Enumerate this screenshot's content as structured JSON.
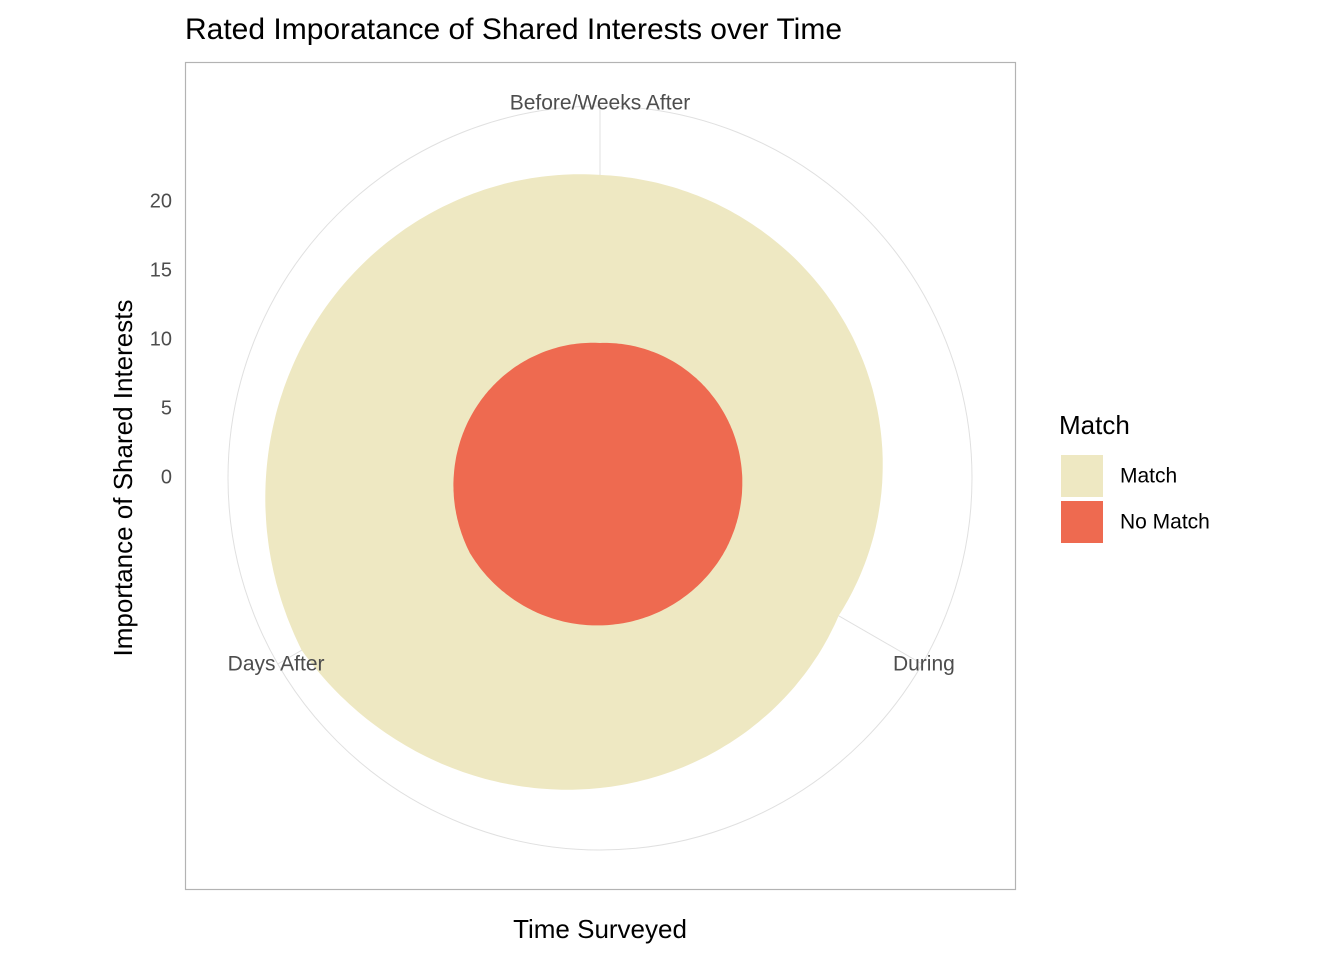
{
  "chart_data": {
    "type": "polar-area",
    "title": "Rated Imporatance of Shared Interests over Time",
    "x_label": "Time Surveyed",
    "y_label": "Importance of Shared Interests",
    "categories": [
      "Before/Weeks After",
      "During",
      "Days After"
    ],
    "series": [
      {
        "name": "Match",
        "color": "#EEE8C2",
        "values": [
          12.2,
          9.5,
          14.1
        ]
      },
      {
        "name": "No Match",
        "color": "#EE6A50",
        "values": [
          9.8,
          10.5,
          10.9
        ]
      }
    ],
    "ylim": [
      0,
      27
    ],
    "yticks": [
      0,
      5,
      10,
      15,
      20
    ],
    "legend_title": "Match",
    "legend_position": "right",
    "grid": true
  }
}
